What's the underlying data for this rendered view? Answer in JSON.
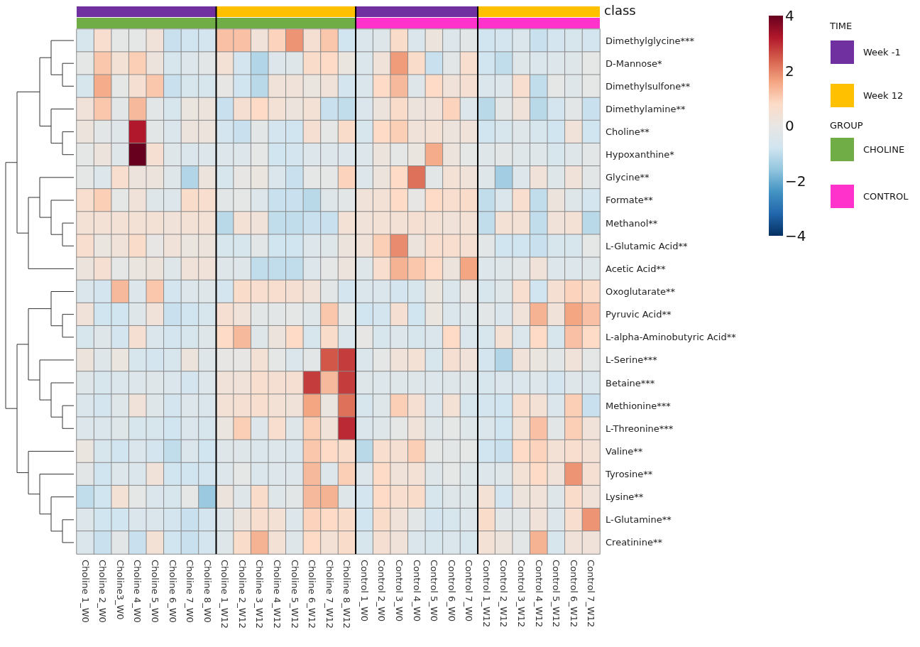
{
  "chart_data": {
    "type": "heatmap",
    "categories": [
      "Choline 1_W0",
      "Choline 2_W0",
      "Choline3_W0",
      "Choline 4_W0",
      "Choline 5_W0",
      "Choline 6_W0",
      "Choline 7_W0",
      "Choline 8_W0",
      "Choline 1_W12",
      "Choline 2_W12",
      "Choline 3_W12",
      "Choline 4_W12",
      "Choline 5_W12",
      "Choline 6_W12",
      "Choline 7_W12",
      "Choline 8_W12",
      "Control 1_W0",
      "Control 2_W0",
      "Control 3_W0",
      "Control 4_W0",
      "Control 5_W0",
      "Control 6_W0",
      "Control 7_W0",
      "Control 1_W12",
      "Control 2_W12",
      "Control 3_W12",
      "Control 4_W12",
      "Control 5_W12",
      "Control 6_W12",
      "Control 7_W12"
    ],
    "y_categories": [
      "Dimethylglycine***",
      "D-Mannose*",
      "Dimethylsulfone**",
      "Dimethylamine**",
      "Choline**",
      "Hypoxanthine*",
      "Glycine**",
      "Formate**",
      "Methanol**",
      "L-Glutamic Acid**",
      "Acetic Acid**",
      "Oxoglutarate**",
      "Pyruvic Acid**",
      "L-alpha-Aminobutyric Acid**",
      "L-Serine***",
      "Betaine***",
      "Methionine***",
      "L-Threonine***",
      "Valine**",
      "Tyrosine**",
      "Lysine**",
      "L-Glutamine**",
      "Creatinine**"
    ],
    "cells": [
      [
        -0.6,
        0.6,
        -0.1,
        -0.1,
        0.3,
        -0.9,
        -0.8,
        -0.7,
        1.2,
        1.2,
        0.3,
        0.9,
        1.8,
        0.5,
        1.1,
        -0.8,
        -0.5,
        -0.3,
        0.7,
        -0.5,
        0.2,
        -0.4,
        -0.2,
        -0.8,
        -0.7,
        -0.5,
        -0.9,
        -0.7,
        -0.6,
        -0.7
      ],
      [
        -0.1,
        1.1,
        0.4,
        1.0,
        0.2,
        -0.6,
        -0.4,
        -0.2,
        0.4,
        -0.7,
        -1.2,
        -0.4,
        -0.3,
        0.7,
        0.8,
        0.1,
        -0.5,
        0.3,
        1.7,
        0.7,
        -0.9,
        -0.2,
        0.6,
        -0.8,
        -1.0,
        -0.3,
        -0.5,
        -0.4,
        -0.3,
        -0.1
      ],
      [
        -0.6,
        1.5,
        -0.1,
        0.5,
        1.1,
        -0.9,
        -0.6,
        -0.6,
        0.0,
        -0.8,
        -1.1,
        0.3,
        0.3,
        0.1,
        0.3,
        -0.7,
        -0.5,
        0.8,
        1.3,
        -0.3,
        0.8,
        0.3,
        0.5,
        -0.5,
        -0.4,
        0.6,
        -1.0,
        -0.1,
        -0.3,
        -0.1
      ],
      [
        0.3,
        1.1,
        -0.2,
        1.3,
        -0.2,
        -0.6,
        0.1,
        0.2,
        -0.9,
        0.5,
        0.8,
        0.4,
        0.2,
        0.4,
        -0.9,
        -1.0,
        -0.5,
        0.2,
        0.7,
        0.2,
        0.3,
        0.9,
        -0.4,
        -1.1,
        -0.2,
        0.3,
        -1.1,
        -0.7,
        -0.2,
        -0.9
      ],
      [
        0.2,
        -0.2,
        -0.3,
        3.2,
        -0.2,
        -0.5,
        0.2,
        0.2,
        -0.7,
        -0.9,
        -0.2,
        -0.7,
        -0.8,
        0.5,
        -0.1,
        0.7,
        -0.6,
        0.8,
        1.0,
        0.3,
        0.4,
        0.2,
        0.3,
        -0.8,
        -0.6,
        -0.3,
        -0.6,
        -0.8,
        0.3,
        -0.8
      ],
      [
        -0.1,
        0.2,
        -0.3,
        4.0,
        0.5,
        -0.3,
        -0.5,
        -0.4,
        -0.4,
        -0.4,
        -0.1,
        -0.8,
        -0.7,
        -0.4,
        -0.4,
        -0.4,
        -0.4,
        0.2,
        -0.1,
        0.1,
        1.5,
        0.2,
        -0.1,
        -0.3,
        -0.2,
        -0.3,
        -0.3,
        -0.6,
        -0.3,
        -0.2
      ],
      [
        -0.1,
        -0.4,
        0.6,
        0.2,
        0.2,
        -0.3,
        -1.2,
        0.2,
        -0.6,
        0.0,
        0.1,
        -0.5,
        -0.9,
        -0.1,
        -0.1,
        0.9,
        -0.4,
        0.2,
        0.8,
        2.2,
        -0.2,
        0.4,
        0.3,
        -0.3,
        -1.4,
        -0.4,
        0.3,
        -0.3,
        0.3,
        -0.2
      ],
      [
        0.6,
        1.0,
        -0.1,
        0.3,
        -0.3,
        -0.4,
        0.7,
        0.6,
        -0.2,
        -0.1,
        -0.4,
        -0.9,
        -0.9,
        -1.1,
        -0.3,
        -0.2,
        0.3,
        0.4,
        0.8,
        0.0,
        0.8,
        0.6,
        0.7,
        -1.0,
        -0.5,
        0.6,
        -1.0,
        0.2,
        -0.3,
        -0.7
      ],
      [
        0.4,
        0.4,
        0.4,
        0.4,
        0.4,
        0.3,
        0.4,
        0.4,
        -1.1,
        0.4,
        0.3,
        -1.0,
        -1.0,
        -0.9,
        -0.9,
        0.4,
        0.3,
        0.4,
        0.4,
        0.5,
        0.4,
        0.3,
        0.4,
        -1.0,
        0.4,
        0.4,
        -1.0,
        0.3,
        0.4,
        -1.1
      ],
      [
        0.6,
        0.1,
        0.3,
        0.7,
        0.0,
        0.3,
        0.1,
        0.2,
        -0.6,
        -0.6,
        -0.2,
        -0.8,
        -0.8,
        -0.4,
        -0.3,
        0.2,
        0.3,
        1.0,
        1.9,
        0.2,
        0.6,
        0.6,
        0.5,
        -0.2,
        -0.8,
        -0.8,
        -0.9,
        -0.6,
        -0.6,
        -0.1
      ],
      [
        0.2,
        0.5,
        -0.1,
        0.1,
        0.2,
        -0.3,
        0.3,
        0.3,
        -0.3,
        -0.3,
        -1.0,
        -1.0,
        -1.0,
        -0.4,
        -0.1,
        0.2,
        -0.3,
        0.6,
        1.4,
        1.1,
        0.8,
        0.2,
        1.6,
        -0.4,
        -0.3,
        -0.2,
        0.3,
        -0.4,
        -0.4,
        -0.3
      ],
      [
        -0.5,
        -0.7,
        1.3,
        -0.4,
        1.1,
        -0.7,
        -0.4,
        -0.3,
        -0.7,
        0.7,
        0.6,
        0.6,
        0.5,
        0.3,
        -0.2,
        -0.7,
        -0.5,
        -0.5,
        -0.7,
        -0.6,
        0.1,
        -0.5,
        0.0,
        -0.6,
        -0.3,
        0.6,
        -0.8,
        0.5,
        0.9,
        0.7
      ],
      [
        0.3,
        -0.8,
        -0.8,
        -0.3,
        0.3,
        -0.9,
        -0.8,
        -0.6,
        0.5,
        0.3,
        -0.2,
        -0.2,
        -0.1,
        -0.3,
        1.1,
        -0.1,
        -0.8,
        -0.7,
        0.5,
        -0.8,
        0.1,
        -0.5,
        -0.3,
        -0.2,
        -0.5,
        0.3,
        1.4,
        0.3,
        1.6,
        1.2
      ],
      [
        -0.6,
        -0.3,
        -0.7,
        0.5,
        -0.5,
        -0.7,
        -0.6,
        -0.3,
        0.8,
        1.3,
        -0.3,
        0.2,
        0.8,
        -0.6,
        0.7,
        -0.5,
        0.0,
        -0.6,
        -0.4,
        -0.6,
        -0.5,
        0.8,
        -0.5,
        -0.6,
        0.4,
        -0.5,
        0.8,
        -0.6,
        1.2,
        0.8
      ],
      [
        0.2,
        -0.3,
        0.1,
        -0.6,
        -0.7,
        -0.6,
        0.2,
        -0.3,
        0.0,
        0.0,
        0.4,
        -0.1,
        -0.5,
        -0.2,
        2.5,
        2.8,
        -0.5,
        -0.1,
        0.3,
        0.4,
        -0.6,
        0.5,
        0.3,
        -0.7,
        -1.2,
        0.3,
        0.1,
        -0.2,
        0.3,
        -0.1
      ],
      [
        -0.3,
        -0.6,
        -0.5,
        -0.4,
        -0.3,
        -0.5,
        -0.7,
        -0.4,
        0.3,
        0.3,
        0.6,
        0.5,
        0.5,
        2.8,
        1.3,
        2.8,
        -0.3,
        -0.4,
        -0.3,
        -0.3,
        -0.4,
        -0.3,
        -0.3,
        -0.6,
        -0.5,
        -0.5,
        -0.4,
        -0.7,
        -0.3,
        -0.5
      ],
      [
        -0.5,
        -0.7,
        -0.3,
        0.3,
        -0.3,
        -0.7,
        -0.4,
        -0.5,
        0.4,
        0.5,
        0.6,
        0.4,
        0.3,
        1.6,
        0.1,
        2.2,
        -0.6,
        -0.3,
        1.0,
        0.5,
        -0.5,
        0.4,
        -0.6,
        -0.7,
        -0.8,
        0.6,
        0.4,
        -0.5,
        1.0,
        -0.9
      ],
      [
        -0.4,
        -0.5,
        -0.3,
        -0.6,
        -0.6,
        -0.8,
        -0.5,
        -0.6,
        0.1,
        1.0,
        -0.4,
        0.6,
        -0.3,
        1.0,
        0.3,
        3.0,
        -0.5,
        -0.3,
        -0.1,
        0.3,
        -0.3,
        -0.1,
        -0.3,
        -0.5,
        -0.8,
        0.4,
        1.2,
        -0.2,
        1.0,
        0.3
      ],
      [
        0.1,
        -0.6,
        -0.8,
        -0.5,
        -0.7,
        -1.0,
        -0.5,
        -0.8,
        -0.3,
        -0.3,
        -0.5,
        -0.4,
        -0.5,
        1.1,
        0.8,
        0.7,
        -1.1,
        0.6,
        0.5,
        1.0,
        -0.1,
        -0.2,
        -0.1,
        -0.8,
        -0.9,
        0.8,
        0.9,
        0.4,
        0.6,
        0.4
      ],
      [
        -0.2,
        -0.8,
        -0.4,
        -0.5,
        0.3,
        -0.8,
        -0.8,
        -0.7,
        -0.4,
        -0.1,
        -0.5,
        -0.4,
        -0.4,
        1.3,
        -0.4,
        1.0,
        -0.4,
        0.8,
        0.3,
        0.4,
        -0.3,
        -0.1,
        -0.3,
        -0.4,
        -0.3,
        0.4,
        0.8,
        0.3,
        1.8,
        0.5
      ],
      [
        -1.0,
        -0.8,
        0.4,
        -0.1,
        -0.5,
        -0.6,
        -0.1,
        -1.5,
        0.2,
        -0.3,
        0.7,
        -0.3,
        -0.2,
        1.3,
        1.4,
        -0.3,
        -0.7,
        0.8,
        0.6,
        0.7,
        -0.6,
        -0.3,
        -0.3,
        0.4,
        -0.7,
        0.2,
        0.3,
        -0.3,
        0.7,
        0.3
      ],
      [
        -0.4,
        -0.8,
        -0.8,
        -0.5,
        -0.5,
        -0.7,
        -0.9,
        -0.7,
        -0.3,
        0.2,
        0.6,
        0.4,
        -0.4,
        0.9,
        0.8,
        0.7,
        -0.8,
        0.7,
        0.3,
        -0.2,
        -0.7,
        -0.6,
        -0.4,
        0.7,
        -0.2,
        -0.2,
        0.3,
        -0.4,
        0.6,
        1.8
      ],
      [
        -0.5,
        -0.9,
        -0.2,
        -0.9,
        0.4,
        -0.8,
        -0.9,
        -0.7,
        -0.3,
        0.7,
        1.4,
        0.4,
        -0.3,
        0.8,
        0.4,
        0.7,
        -0.6,
        0.5,
        0.3,
        -0.5,
        -0.6,
        -0.5,
        -0.6,
        0.4,
        0.2,
        -0.2,
        1.4,
        -0.6,
        0.3,
        0.3
      ]
    ],
    "clim": [
      -4,
      4
    ],
    "cticks": [
      4,
      2,
      0,
      {
        "value": -2,
        "label": "−2"
      },
      {
        "value": -4,
        "label": "−4"
      }
    ],
    "annotations": [
      "class",
      "TIME",
      "Week -1",
      "Week 12",
      "GROUP",
      "CHOLINE",
      "CONTROL"
    ]
  }
}
